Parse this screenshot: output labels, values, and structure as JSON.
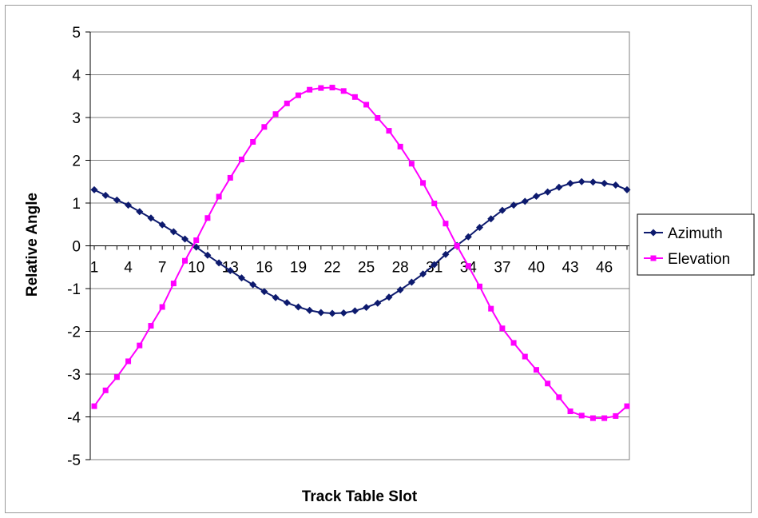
{
  "chart_data": {
    "type": "line",
    "title": "",
    "xlabel": "Track Table Slot",
    "ylabel": "Relative Angle",
    "ylim": [
      -5,
      5
    ],
    "yticks": [
      -5,
      -4,
      -3,
      -2,
      -1,
      0,
      1,
      2,
      3,
      4,
      5
    ],
    "x_tick_labels": [
      "1",
      "4",
      "7",
      "10",
      "13",
      "16",
      "19",
      "22",
      "25",
      "28",
      "31",
      "34",
      "37",
      "40",
      "43",
      "46"
    ],
    "x": [
      1,
      2,
      3,
      4,
      5,
      6,
      7,
      8,
      9,
      10,
      11,
      12,
      13,
      14,
      15,
      16,
      17,
      18,
      19,
      20,
      21,
      22,
      23,
      24,
      25,
      26,
      27,
      28,
      29,
      30,
      31,
      32,
      33,
      34,
      35,
      36,
      37,
      38,
      39,
      40,
      41,
      42,
      43,
      44,
      45,
      46,
      47,
      48
    ],
    "grid": "horizontal",
    "legend_position": "right",
    "series": [
      {
        "name": "Azimuth",
        "color": "#0d1a6e",
        "marker": "diamond",
        "values": [
          1.31,
          1.18,
          1.07,
          0.95,
          0.8,
          0.65,
          0.49,
          0.33,
          0.16,
          -0.03,
          -0.22,
          -0.4,
          -0.58,
          -0.75,
          -0.91,
          -1.07,
          -1.21,
          -1.33,
          -1.43,
          -1.51,
          -1.56,
          -1.58,
          -1.57,
          -1.52,
          -1.44,
          -1.34,
          -1.2,
          -1.03,
          -0.85,
          -0.66,
          -0.44,
          -0.2,
          0.01,
          0.21,
          0.43,
          0.63,
          0.83,
          0.95,
          1.04,
          1.16,
          1.26,
          1.37,
          1.46,
          1.5,
          1.49,
          1.46,
          1.42,
          1.31
        ]
      },
      {
        "name": "Elevation",
        "color": "#ff00ff",
        "marker": "square",
        "values": [
          -3.75,
          -3.38,
          -3.07,
          -2.7,
          -2.33,
          -1.87,
          -1.43,
          -0.88,
          -0.35,
          0.13,
          0.65,
          1.15,
          1.59,
          2.02,
          2.43,
          2.78,
          3.08,
          3.33,
          3.52,
          3.65,
          3.69,
          3.7,
          3.62,
          3.48,
          3.3,
          2.99,
          2.69,
          2.32,
          1.92,
          1.47,
          0.99,
          0.52,
          0.0,
          -0.47,
          -0.95,
          -1.47,
          -1.93,
          -2.27,
          -2.59,
          -2.9,
          -3.22,
          -3.54,
          -3.87,
          -3.97,
          -4.03,
          -4.03,
          -3.98,
          -3.75
        ]
      }
    ]
  }
}
